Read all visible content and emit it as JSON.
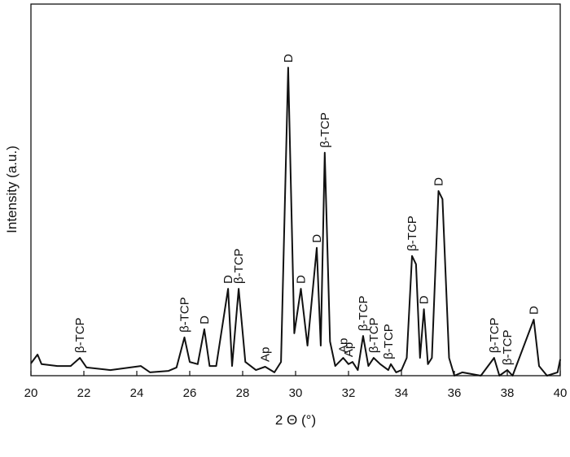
{
  "chart_data": {
    "type": "line",
    "x_label": "2 Θ (°)",
    "y_label": "Intensity (a.u.)",
    "xlim": [
      20,
      40
    ],
    "xticks": [
      20,
      22,
      24,
      26,
      28,
      30,
      32,
      34,
      36,
      38,
      40
    ],
    "ylim": [
      0,
      100
    ],
    "series": [
      {
        "color": "#111111",
        "x": [
          20.0,
          20.25,
          20.4,
          21,
          21.5,
          21.85,
          22.1,
          23,
          24.15,
          24.5,
          25.2,
          25.5,
          25.8,
          26.0,
          26.3,
          26.55,
          26.75,
          27.0,
          27.45,
          27.6,
          27.85,
          28.1,
          28.5,
          28.85,
          29.2,
          29.45,
          29.72,
          29.95,
          30.2,
          30.45,
          30.8,
          30.95,
          31.1,
          31.3,
          31.5,
          31.8,
          32.0,
          32.15,
          32.35,
          32.55,
          32.75,
          32.95,
          33.2,
          33.5,
          33.6,
          33.8,
          34.0,
          34.2,
          34.4,
          34.55,
          34.7,
          34.85,
          35.0,
          35.15,
          35.4,
          35.55,
          35.8,
          36.0,
          36.3,
          37.0,
          37.5,
          37.7,
          38.0,
          38.2,
          39.0,
          39.2,
          39.5,
          39.9,
          40.0
        ],
        "values": [
          3.3,
          5.7,
          3.1,
          2.6,
          2.6,
          4.8,
          2.2,
          1.5,
          2.6,
          0.9,
          1.3,
          2.2,
          10.3,
          3.7,
          3.1,
          12.5,
          2.6,
          2.6,
          23.4,
          2.6,
          23.4,
          3.7,
          1.5,
          2.4,
          0.9,
          3.7,
          82.9,
          11.4,
          23.4,
          8.1,
          34.4,
          8.1,
          60.0,
          9.2,
          2.6,
          4.8,
          3.1,
          3.7,
          1.5,
          10.7,
          2.6,
          4.8,
          3.1,
          1.5,
          3.1,
          0.9,
          1.5,
          4.8,
          32.2,
          30.0,
          4.8,
          17.9,
          3.1,
          4.8,
          49.7,
          47.5,
          4.8,
          0.0,
          0.9,
          0.0,
          4.8,
          0.0,
          1.5,
          0.0,
          15.1,
          2.6,
          0.0,
          0.9,
          4.4
        ]
      }
    ],
    "annotations": [
      {
        "text": "β-TCP",
        "x": 21.85
      },
      {
        "text": "β-TCP",
        "x": 25.8
      },
      {
        "text": "D",
        "x": 26.55
      },
      {
        "text": "D",
        "x": 27.45
      },
      {
        "text": "β-TCP",
        "x": 27.85
      },
      {
        "text": "Ap",
        "x": 28.85
      },
      {
        "text": "D",
        "x": 29.72
      },
      {
        "text": "D",
        "x": 30.2
      },
      {
        "text": "D",
        "x": 30.8
      },
      {
        "text": "β-TCP",
        "x": 31.1
      },
      {
        "text": "Ap",
        "x": 31.8
      },
      {
        "text": "Ap",
        "x": 32.0
      },
      {
        "text": "β-TCP",
        "x": 32.55
      },
      {
        "text": "β-TCP",
        "x": 32.95
      },
      {
        "text": "β-TCP",
        "x": 33.5
      },
      {
        "text": "β-TCP",
        "x": 34.4
      },
      {
        "text": "D",
        "x": 34.85
      },
      {
        "text": "D",
        "x": 35.4
      },
      {
        "text": "β-TCP",
        "x": 37.5
      },
      {
        "text": "β-TCP",
        "x": 38.0
      },
      {
        "text": "D",
        "x": 39.0
      }
    ]
  }
}
